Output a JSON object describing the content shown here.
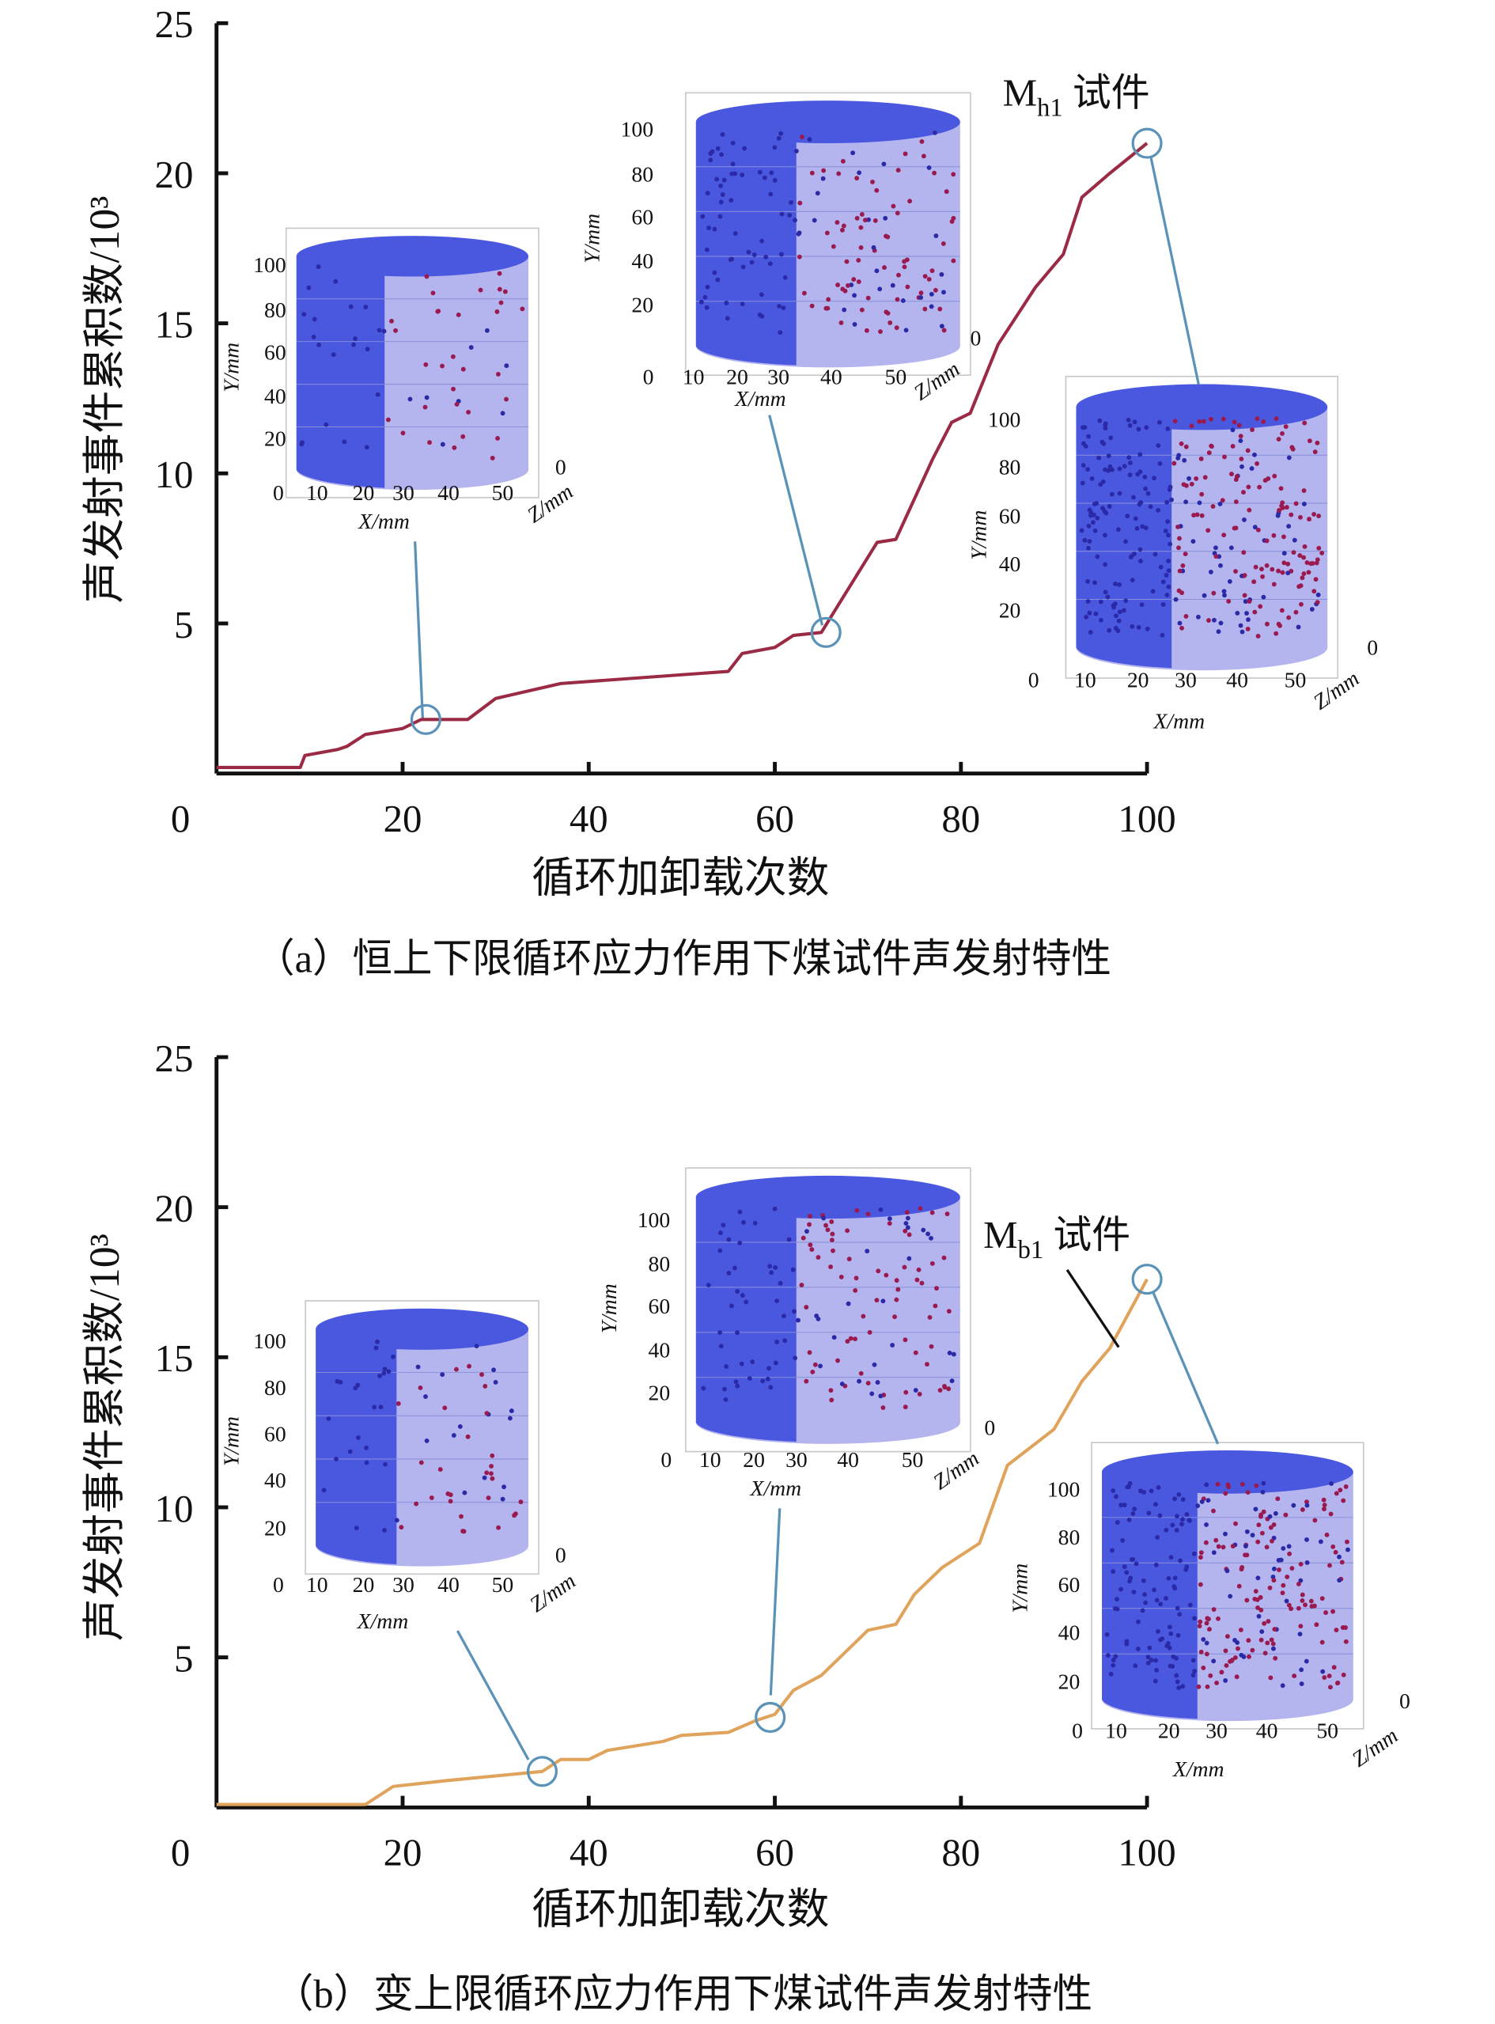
{
  "chart_data": [
    {
      "type": "line",
      "panel": "a",
      "caption": "（a）恒上下限循环应力作用下煤试件声发射特性",
      "xlabel": "循环加卸载次数",
      "ylabel": "声发射事件累积数/10³",
      "xlim": [
        0,
        100
      ],
      "ylim": [
        0,
        25
      ],
      "xticks": [
        "0",
        "20",
        "40",
        "60",
        "80",
        "100"
      ],
      "xtick_values": [
        0,
        20,
        40,
        60,
        80,
        100
      ],
      "yticks": [
        "5",
        "10",
        "15",
        "20",
        "25"
      ],
      "ytick_values": [
        5,
        10,
        15,
        20,
        25
      ],
      "series": [
        {
          "name": "Mh1 试件",
          "color": "#9b2a44",
          "x": [
            0,
            9,
            9.5,
            13,
            14,
            16,
            20,
            22,
            27,
            30,
            37,
            55,
            56.5,
            60,
            62,
            65,
            66,
            71,
            73,
            77,
            79,
            81,
            84,
            88,
            91,
            93,
            96,
            100
          ],
          "y": [
            0.2,
            0.2,
            0.6,
            0.8,
            0.9,
            1.3,
            1.5,
            1.8,
            1.8,
            2.5,
            3.0,
            3.4,
            4.0,
            4.2,
            4.6,
            4.7,
            5.2,
            7.7,
            7.8,
            10.5,
            11.7,
            12.0,
            14.3,
            16.2,
            17.3,
            19.2,
            20.0,
            21.0
          ]
        }
      ],
      "annotation": {
        "label_main": "M",
        "label_sub": "h1",
        "label_suffix": " 试件"
      },
      "markers": [
        {
          "x": 22.5,
          "y": 1.8
        },
        {
          "x": 65.5,
          "y": 4.7
        },
        {
          "x": 100,
          "y": 21.0
        }
      ],
      "insets": [
        {
          "yticks": [
            "100",
            "80",
            "60",
            "40",
            "20"
          ],
          "xticks": [
            "0",
            "10",
            "20",
            "30",
            "40",
            "50"
          ],
          "z0": "0",
          "xlabel": "X/mm",
          "ylabel": "Y/mm",
          "zlabel": "Z/mm"
        },
        {
          "yticks": [
            "100",
            "80",
            "60",
            "40",
            "20"
          ],
          "xticks": [
            "0",
            "10",
            "20",
            "30",
            "40",
            "50"
          ],
          "z0": "0",
          "xlabel": "X/mm",
          "ylabel": "Y/mm",
          "zlabel": "Z/mm"
        },
        {
          "yticks": [
            "100",
            "80",
            "60",
            "40",
            "20"
          ],
          "xticks": [
            "0",
            "10",
            "20",
            "30",
            "40",
            "50"
          ],
          "z0": "0",
          "xlabel": "X/mm",
          "ylabel": "Y/mm",
          "zlabel": "Z/mm"
        }
      ]
    },
    {
      "type": "line",
      "panel": "b",
      "caption": "（b）变上限循环应力作用下煤试件声发射特性",
      "xlabel": "循环加卸载次数",
      "ylabel": "声发射事件累积数/10³",
      "xlim": [
        0,
        100
      ],
      "ylim": [
        0,
        25
      ],
      "xticks": [
        "0",
        "20",
        "40",
        "60",
        "80",
        "100"
      ],
      "xtick_values": [
        0,
        20,
        40,
        60,
        80,
        100
      ],
      "yticks": [
        "5",
        "10",
        "15",
        "20",
        "25"
      ],
      "ytick_values": [
        5,
        10,
        15,
        20,
        25
      ],
      "series": [
        {
          "name": "Mb1 试件",
          "color": "#e0a35c",
          "x": [
            0,
            16,
            19,
            25,
            35,
            37,
            40,
            42,
            48,
            50,
            55,
            58,
            60,
            62,
            65,
            70,
            73,
            75,
            78,
            82,
            85,
            90,
            93,
            96,
            100
          ],
          "y": [
            0.1,
            0.1,
            0.7,
            0.9,
            1.2,
            1.6,
            1.6,
            1.9,
            2.2,
            2.4,
            2.5,
            2.9,
            3.1,
            3.9,
            4.4,
            5.9,
            6.1,
            7.1,
            8.0,
            8.8,
            11.4,
            12.6,
            14.2,
            15.3,
            17.6
          ]
        }
      ],
      "annotation": {
        "label_main": "M",
        "label_sub": "b1",
        "label_suffix": " 试件"
      },
      "markers": [
        {
          "x": 35,
          "y": 1.2
        },
        {
          "x": 59.5,
          "y": 3.0
        },
        {
          "x": 100,
          "y": 17.6
        }
      ],
      "insets": [
        {
          "yticks": [
            "100",
            "80",
            "60",
            "40",
            "20"
          ],
          "xticks": [
            "0",
            "10",
            "20",
            "30",
            "40",
            "50"
          ],
          "z0": "0",
          "xlabel": "X/mm",
          "ylabel": "Y/mm",
          "zlabel": "Z/mm"
        },
        {
          "yticks": [
            "100",
            "80",
            "60",
            "40",
            "20"
          ],
          "xticks": [
            "0",
            "10",
            "20",
            "30",
            "40",
            "50"
          ],
          "z0": "0",
          "xlabel": "X/mm",
          "ylabel": "Y/mm",
          "zlabel": "Z/mm"
        },
        {
          "yticks": [
            "100",
            "80",
            "60",
            "40",
            "20"
          ],
          "xticks": [
            "0",
            "10",
            "20",
            "30",
            "40",
            "50"
          ],
          "z0": "0",
          "xlabel": "X/mm",
          "ylabel": "Y/mm",
          "zlabel": "Z/mm"
        }
      ]
    }
  ],
  "colors": {
    "axis": "#111111",
    "leader": "#5b93b8",
    "cyl_dark": "#4a58e0",
    "cyl_light": "#b4b4ee",
    "dot_blue": "#2a2aa8",
    "dot_red": "#9a1a50"
  }
}
